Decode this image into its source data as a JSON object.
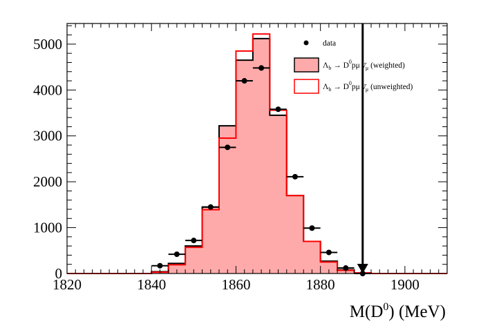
{
  "chart_data": {
    "type": "histogram",
    "xlabel_main": "M(D",
    "xlabel_sup": "0",
    "xlabel_tail": ") (MeV)",
    "xlim": [
      1820,
      1910
    ],
    "ylim": [
      0,
      5450
    ],
    "x_ticks": [
      1820,
      1840,
      1860,
      1880,
      1900
    ],
    "y_ticks": [
      0,
      1000,
      2000,
      3000,
      4000,
      5000
    ],
    "bin_width": 4,
    "bin_edges": [
      1820,
      1824,
      1828,
      1832,
      1836,
      1840,
      1844,
      1848,
      1852,
      1856,
      1860,
      1864,
      1868,
      1872,
      1876,
      1880,
      1884,
      1888,
      1892,
      1896,
      1900,
      1904,
      1908,
      1910
    ],
    "series": [
      {
        "name": "data",
        "style": "points",
        "x": [
          1842,
          1846,
          1850,
          1854,
          1858,
          1862,
          1866,
          1870,
          1874,
          1878,
          1882,
          1886,
          1890
        ],
        "values": [
          170,
          420,
          720,
          1450,
          2750,
          4200,
          4480,
          3580,
          2110,
          990,
          460,
          120,
          0
        ]
      },
      {
        "name": "weighted",
        "style": "filled-step",
        "values": [
          0,
          0,
          0,
          0,
          0,
          40,
          220,
          600,
          1450,
          3220,
          4650,
          5120,
          3450,
          1700,
          700,
          270,
          80,
          15,
          0,
          0,
          0,
          0,
          0
        ]
      },
      {
        "name": "unweighted",
        "style": "step",
        "values": [
          0,
          0,
          0,
          0,
          0,
          30,
          190,
          570,
          1390,
          2950,
          4850,
          5220,
          3560,
          1700,
          700,
          250,
          70,
          15,
          0,
          0,
          0,
          0,
          0
        ]
      }
    ],
    "cut_line": {
      "x": 1890
    },
    "legend": {
      "placement": "top-right",
      "entries": [
        {
          "id": "data",
          "text": "data"
        },
        {
          "id": "weighted",
          "text_main": "Λ",
          "text_sub": "b",
          "text_mid": " → D",
          "text_sup": "0",
          "text_tail": "pμ ν̄",
          "text_sub2": "μ",
          "text_end": " (weighted)"
        },
        {
          "id": "unweighted",
          "text_main": "Λ",
          "text_sub": "b",
          "text_mid": " → D",
          "text_sup": "0",
          "text_tail": "pμ ν̄",
          "text_sub2": "μ",
          "text_end": " (unweighted)"
        }
      ]
    },
    "colors": {
      "fill": "#ffaaaa",
      "red": "#ff0000",
      "black": "#000000"
    }
  }
}
